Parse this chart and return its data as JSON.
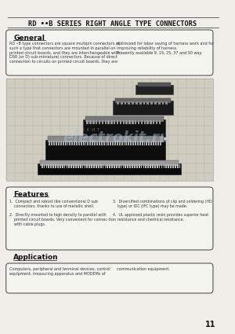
{
  "bg_color": "#e8e8e8",
  "page_bg": "#f0ede8",
  "title": "RD ••B SERIES RIGHT ANGLE TYPE CONNECTORS",
  "title_fontsize": 9.5,
  "page_number": "11",
  "general_heading": "General",
  "general_text_left": "RD •B type connectors are square multipin connectors of\nsuch a type that connectors are mounted in parallel on\nprinted circuit boards, and they are interchangeable with\nDSR (or D) sub-miniature) connectors. Because of direct\nconnection to circuits on printed circuit boards, they are",
  "general_text_right": "optimized for labor saving of harness work and for\nimproving reliability of harness.\nPresently available 9, 15, 25, 37 and 50 way.",
  "features_heading": "Features",
  "features_items": [
    "1.  Compact and robust like conventional D sub\n    connectors, thanks to use of metallic shell.",
    "2.  Directly mounted to high density to parallel with\n    printed circuit boards. Very convenient for connec-tion\n    with cable plugs.",
    "3.  Diversified combinations of clip and soldering (HD\n    type) or IDC (IFC type) may be made.",
    "4.  UL approved plastic resin provides superior heat\n    resistance and chemical resistance."
  ],
  "application_heading": "Application",
  "application_text": "Computers, peripheral and terminal devices, control\nequipment, measuring apparatus and MODEMs of",
  "application_text_right": "communication equipment.",
  "box_color": "#f5f5f0",
  "box_border": "#555555",
  "text_color": "#333333",
  "heading_color": "#111111",
  "line_color": "#666666",
  "watermark_text": "electrokit.ru",
  "image_area_color": "#d8d5ce"
}
